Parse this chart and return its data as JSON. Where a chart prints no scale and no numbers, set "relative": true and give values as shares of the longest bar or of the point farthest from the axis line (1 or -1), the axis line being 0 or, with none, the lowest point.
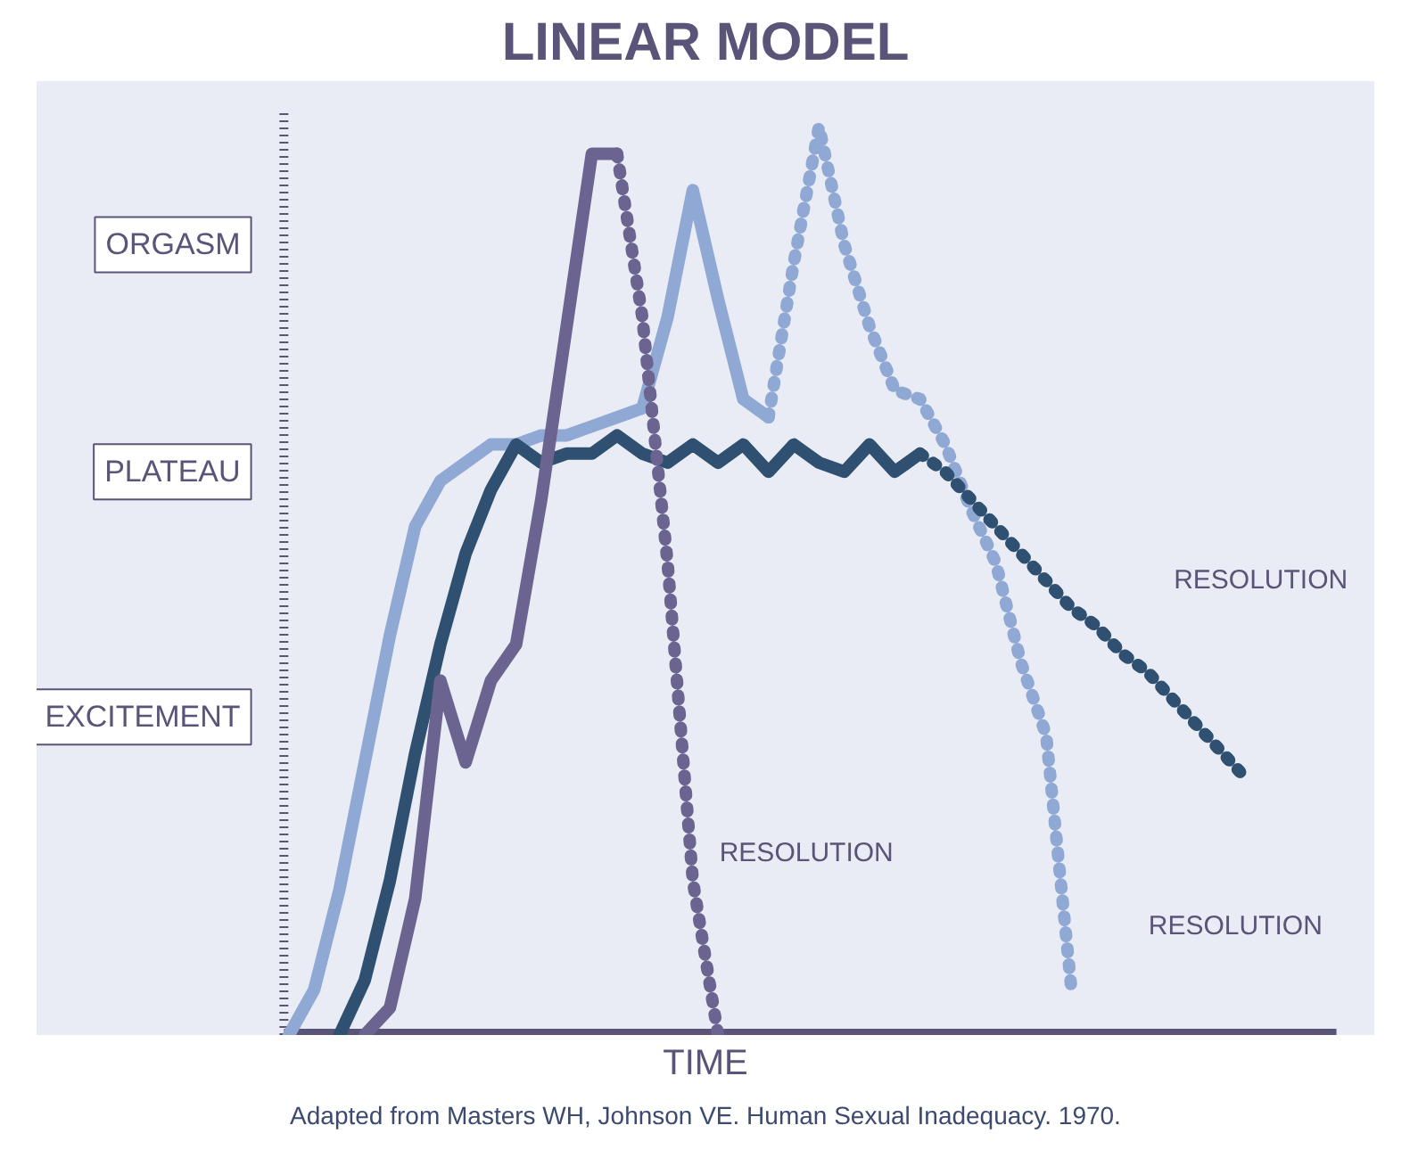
{
  "chart_data": {
    "type": "line",
    "title": "LINEAR MODEL",
    "xlabel": "TIME",
    "relative": true,
    "categories": [
      null,
      null,
      null,
      null,
      null,
      null,
      null,
      null,
      null,
      null,
      null,
      null,
      null,
      null,
      null,
      null,
      null,
      null,
      null,
      null,
      null,
      null,
      null,
      null,
      null,
      null,
      null,
      null,
      null,
      null,
      null,
      null,
      null,
      null,
      null,
      null,
      null,
      null,
      null
    ],
    "series": [
      {
        "color": "#8fa8d4",
        "line_style": "solid",
        "values": [
          0,
          0.05,
          0.16,
          0.3,
          0.44,
          0.56,
          0.61,
          0.63,
          0.65,
          0.65,
          0.66,
          0.66,
          0.67,
          0.68,
          0.69,
          0.79,
          0.93,
          0.81,
          0.7,
          0.68,
          null,
          null,
          null,
          null,
          null,
          null,
          null,
          null,
          null,
          null,
          null,
          null,
          null,
          null,
          null,
          null,
          null,
          null,
          null
        ]
      },
      {
        "color": "#8fa8d4",
        "line_style": "dotted",
        "values": [
          null,
          null,
          null,
          null,
          null,
          null,
          null,
          null,
          null,
          null,
          null,
          null,
          null,
          null,
          null,
          null,
          null,
          null,
          null,
          0.68,
          0.85,
          1.0,
          0.87,
          0.78,
          0.71,
          0.7,
          0.65,
          0.58,
          0.52,
          0.41,
          0.33,
          0.05,
          null,
          null,
          null,
          null,
          null,
          null,
          null
        ]
      },
      {
        "color": "#2f5070",
        "line_style": "solid",
        "values": [
          null,
          null,
          0.0,
          0.06,
          0.17,
          0.31,
          0.43,
          0.53,
          0.6,
          0.65,
          0.63,
          0.64,
          0.64,
          0.66,
          0.64,
          0.63,
          0.65,
          0.63,
          0.65,
          0.62,
          0.65,
          0.63,
          0.62,
          0.65,
          0.62,
          0.64,
          null,
          null,
          null,
          null,
          null,
          null,
          null,
          null,
          null,
          null,
          null,
          null,
          null
        ]
      },
      {
        "color": "#2f5070",
        "line_style": "dotted",
        "values": [
          null,
          null,
          null,
          null,
          null,
          null,
          null,
          null,
          null,
          null,
          null,
          null,
          null,
          null,
          null,
          null,
          null,
          null,
          null,
          null,
          null,
          null,
          null,
          null,
          null,
          0.64,
          0.62,
          0.59,
          0.56,
          0.53,
          0.5,
          0.47,
          0.45,
          0.42,
          0.4,
          0.37,
          0.34,
          0.31,
          0.28
        ]
      },
      {
        "color": "#6b6490",
        "line_style": "solid",
        "values": [
          null,
          null,
          null,
          0,
          0.03,
          0.15,
          0.39,
          0.3,
          0.39,
          0.43,
          0.59,
          0.78,
          0.97,
          0.97,
          null,
          null,
          null,
          null,
          null,
          null,
          null,
          null,
          null,
          null,
          null,
          null,
          null,
          null,
          null,
          null,
          null,
          null,
          null,
          null,
          null,
          null,
          null,
          null,
          null
        ]
      },
      {
        "color": "#6b6490",
        "line_style": "dotted",
        "values": [
          null,
          null,
          null,
          null,
          null,
          null,
          null,
          null,
          null,
          null,
          null,
          null,
          null,
          0.97,
          0.79,
          0.52,
          0.17,
          0,
          null,
          null,
          null,
          null,
          null,
          null,
          null,
          null,
          null,
          null,
          null,
          null,
          null,
          null,
          null,
          null,
          null,
          null,
          null,
          null,
          null
        ]
      }
    ],
    "annotations": [
      "ORGASM",
      "PLATEAU",
      "EXCITEMENT",
      "RESOLUTION",
      "RESOLUTION",
      "RESOLUTION",
      "Adapted from Masters WH, Johnson VE. Human Sexual Inadequacy. 1970."
    ]
  }
}
